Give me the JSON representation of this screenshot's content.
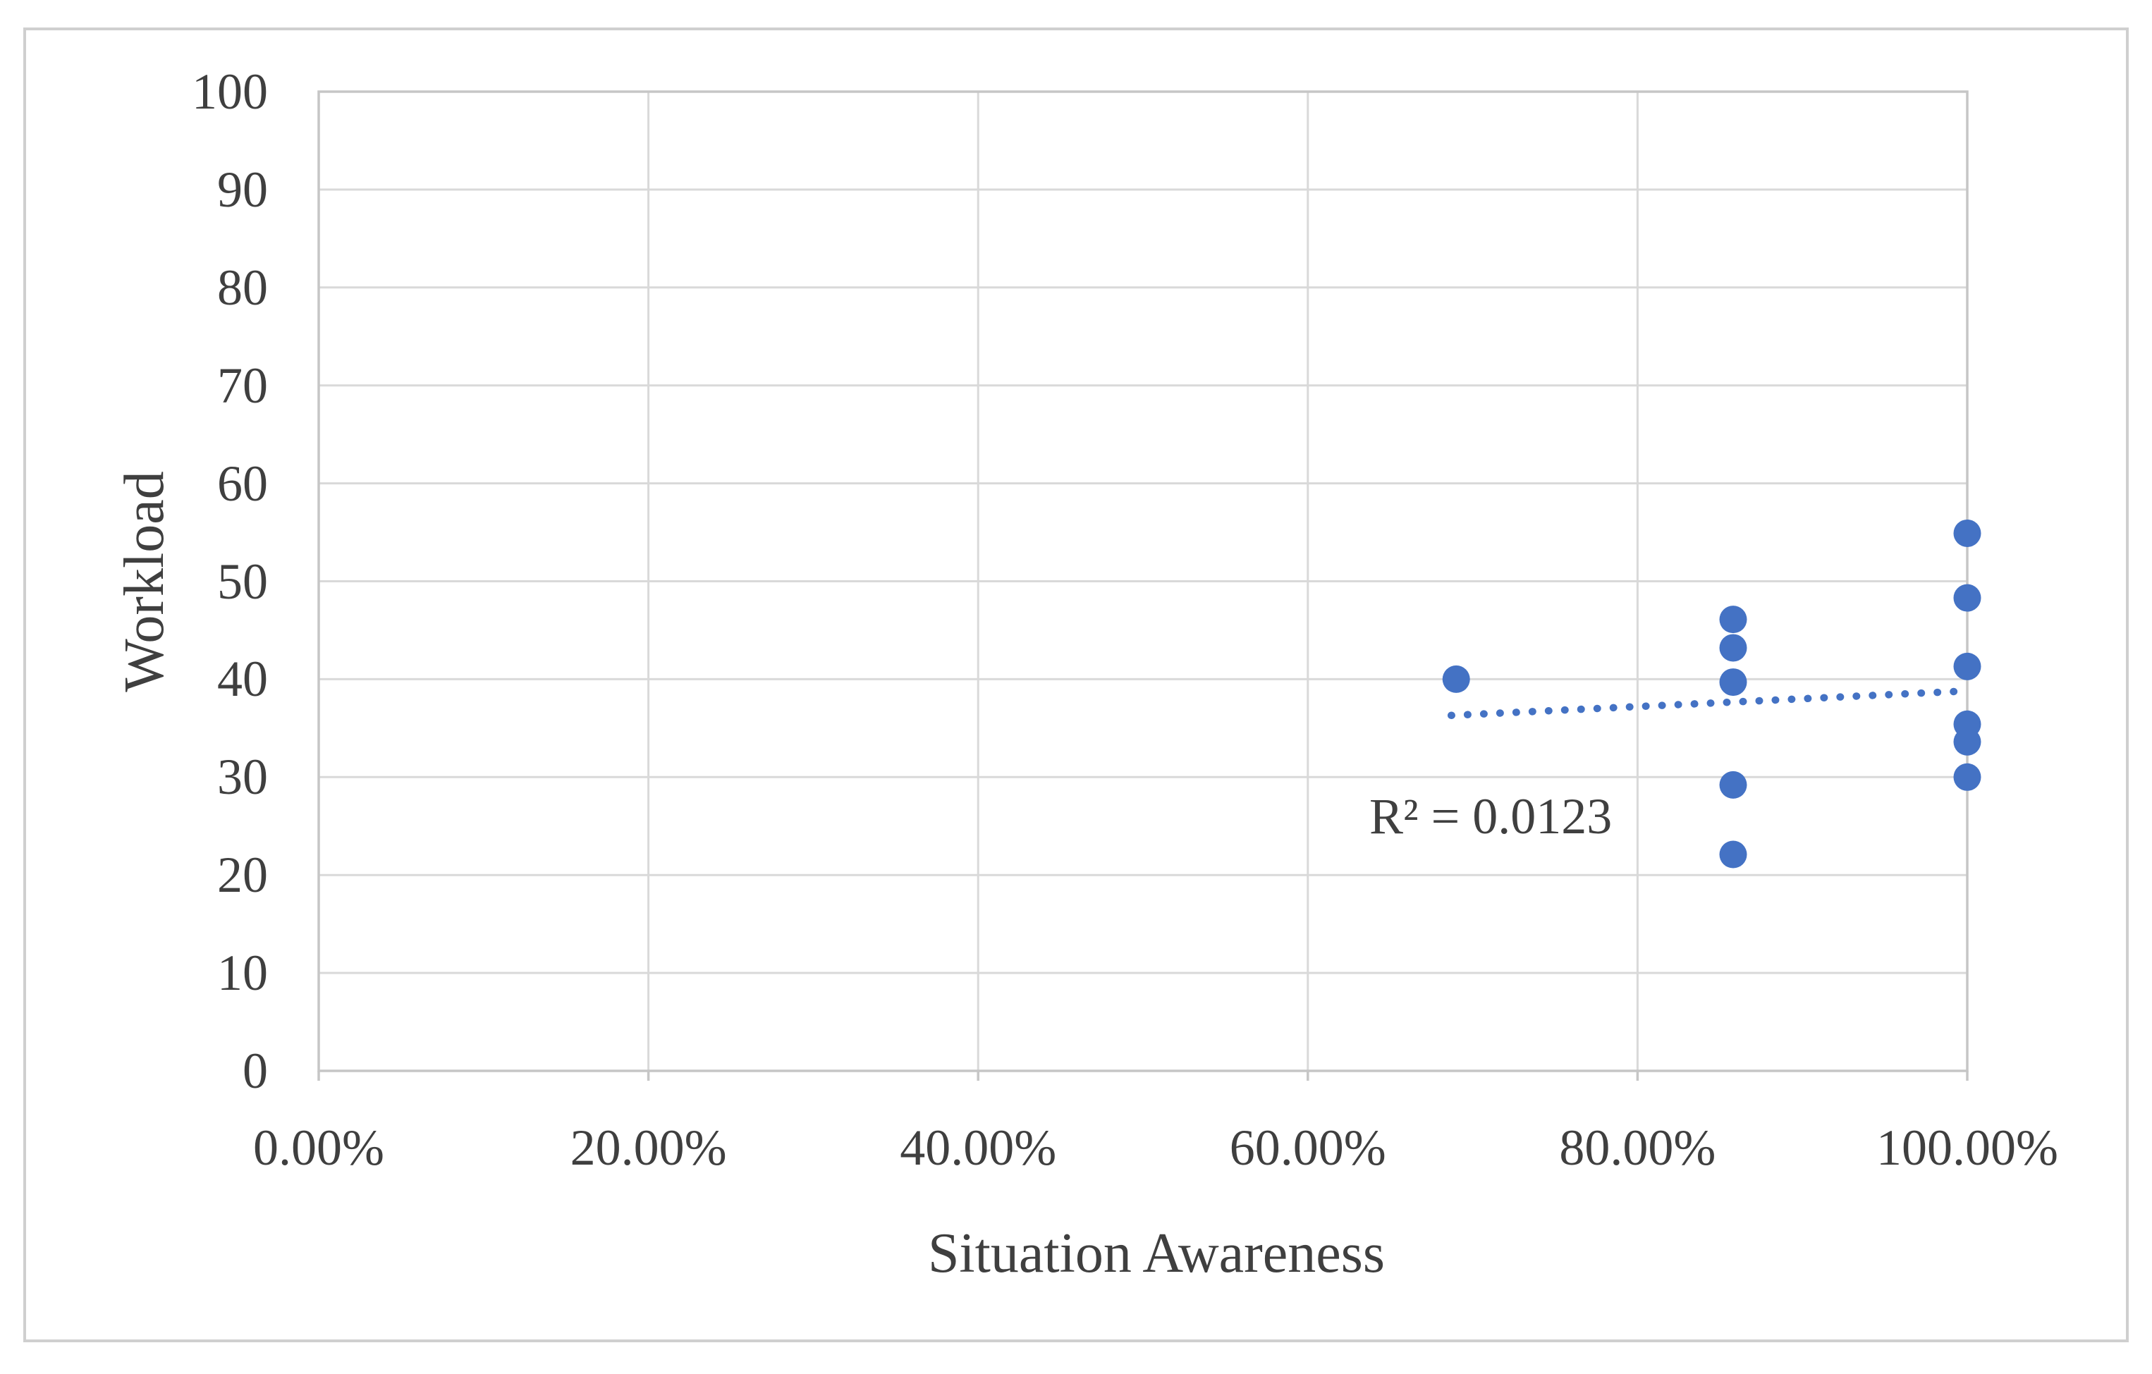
{
  "figure": {
    "background": "#ffffff",
    "outer_border_color": "#cfcfcf"
  },
  "chart_data": {
    "type": "scatter",
    "title": "",
    "xlabel": "Situation Awareness",
    "ylabel": "Workload",
    "annotation": "R² = 0.0123",
    "marker_color": "#4472c4",
    "trendline_color": "#4472c4",
    "gridline_color": "#d9d9d9",
    "axis_line_color": "#c6c6c6",
    "text_color": "#3f3f3f",
    "grid": "both",
    "legend": "none",
    "x_axis": {
      "min": 0,
      "max": 100,
      "tick_step": 20,
      "format": "percent",
      "tick_labels": [
        "0.00%",
        "20.00%",
        "40.00%",
        "60.00%",
        "80.00%",
        "100.00%"
      ]
    },
    "y_axis": {
      "min": 0,
      "max": 100,
      "tick_step": 10,
      "tick_labels": [
        "0",
        "10",
        "20",
        "30",
        "40",
        "50",
        "60",
        "70",
        "80",
        "90",
        "100"
      ]
    },
    "points": [
      {
        "x": 69.0,
        "y": 40.0
      },
      {
        "x": 85.8,
        "y": 46.1
      },
      {
        "x": 85.8,
        "y": 43.2
      },
      {
        "x": 85.8,
        "y": 39.7
      },
      {
        "x": 85.8,
        "y": 29.2
      },
      {
        "x": 85.8,
        "y": 22.1
      },
      {
        "x": 100.0,
        "y": 54.9
      },
      {
        "x": 100.0,
        "y": 48.3
      },
      {
        "x": 100.0,
        "y": 41.3
      },
      {
        "x": 100.0,
        "y": 35.4
      },
      {
        "x": 100.0,
        "y": 33.6
      },
      {
        "x": 100.0,
        "y": 30.0
      }
    ],
    "trendline": {
      "style": "dotted",
      "x1": 68.7,
      "y1": 36.3,
      "x2": 100.0,
      "y2": 38.8
    }
  }
}
